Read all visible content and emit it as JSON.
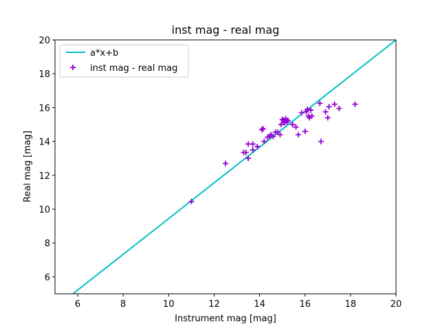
{
  "chart_data": {
    "type": "scatter",
    "title": "inst mag - real mag",
    "xlabel": "Instrument mag [mag]",
    "ylabel": "Real mag [mag]",
    "xlim": [
      5,
      20
    ],
    "ylim": [
      5,
      20
    ],
    "xticks": [
      6,
      8,
      10,
      12,
      14,
      16,
      18,
      20
    ],
    "yticks": [
      6,
      8,
      10,
      12,
      14,
      16,
      18,
      20
    ],
    "grid": false,
    "legend_position": "upper-left",
    "fit_line": {
      "name": "a*x+b",
      "color": "#00bfbf",
      "points": [
        [
          5.79,
          5.0
        ],
        [
          20.0,
          20.0
        ]
      ]
    },
    "series": [
      {
        "name": "inst mag - real mag",
        "marker": "+",
        "color": "#9400d3",
        "x": [
          11.0,
          12.5,
          13.3,
          13.4,
          13.5,
          13.5,
          13.7,
          13.7,
          13.9,
          14.1,
          14.15,
          14.2,
          14.35,
          14.45,
          14.5,
          14.6,
          14.7,
          14.8,
          14.9,
          14.95,
          15.0,
          15.05,
          15.1,
          15.15,
          15.2,
          15.25,
          15.45,
          15.6,
          15.7,
          15.85,
          16.0,
          16.05,
          16.1,
          16.15,
          16.2,
          16.25,
          16.3,
          16.65,
          16.7,
          16.9,
          17.0,
          17.05,
          17.3,
          17.5,
          18.2
        ],
        "y": [
          10.45,
          12.7,
          13.35,
          13.35,
          13.0,
          13.85,
          13.85,
          13.5,
          13.7,
          14.7,
          14.75,
          14.0,
          14.25,
          14.3,
          14.4,
          14.3,
          14.55,
          14.55,
          14.4,
          15.0,
          15.3,
          15.25,
          15.1,
          15.35,
          15.15,
          15.25,
          15.0,
          14.85,
          14.4,
          15.7,
          14.6,
          15.75,
          15.9,
          15.5,
          15.4,
          15.85,
          15.5,
          16.25,
          14.0,
          15.75,
          15.4,
          16.05,
          16.2,
          15.95,
          16.2
        ]
      }
    ]
  }
}
